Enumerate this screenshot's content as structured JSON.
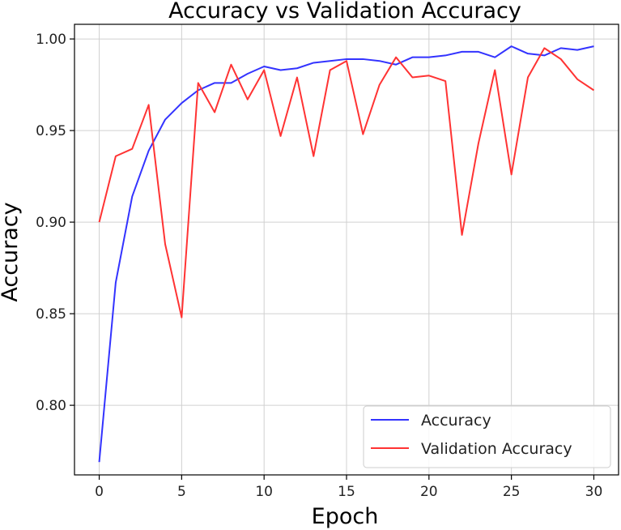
{
  "chart_data": {
    "type": "line",
    "title": "Accuracy vs Validation Accuracy",
    "xlabel": "Epoch",
    "ylabel": "Accuracy",
    "xlim": [
      -1.5,
      31.5
    ],
    "ylim": [
      0.762,
      1.008
    ],
    "grid": true,
    "legend_position": "lower-right",
    "x_ticks": [
      0,
      5,
      10,
      15,
      20,
      25,
      30
    ],
    "x_tick_labels": [
      "0",
      "5",
      "10",
      "15",
      "20",
      "25",
      "30"
    ],
    "y_ticks": [
      0.8,
      0.85,
      0.9,
      0.95,
      1.0
    ],
    "y_tick_labels": [
      "0.80",
      "0.85",
      "0.90",
      "0.95",
      "1.00"
    ],
    "x": [
      0,
      1,
      2,
      3,
      4,
      5,
      6,
      7,
      8,
      9,
      10,
      11,
      12,
      13,
      14,
      15,
      16,
      17,
      18,
      19,
      20,
      21,
      22,
      23,
      24,
      25,
      26,
      27,
      28,
      29,
      30
    ],
    "series": [
      {
        "name": "Accuracy",
        "color": "#3333ff",
        "values": [
          0.769,
          0.867,
          0.914,
          0.939,
          0.956,
          0.965,
          0.972,
          0.976,
          0.976,
          0.981,
          0.985,
          0.983,
          0.984,
          0.987,
          0.988,
          0.989,
          0.989,
          0.988,
          0.986,
          0.99,
          0.99,
          0.991,
          0.993,
          0.993,
          0.99,
          0.996,
          0.992,
          0.991,
          0.995,
          0.994,
          0.996
        ]
      },
      {
        "name": "Validation Accuracy",
        "color": "#ff3333",
        "values": [
          0.9,
          0.936,
          0.94,
          0.964,
          0.888,
          0.848,
          0.976,
          0.96,
          0.986,
          0.967,
          0.983,
          0.947,
          0.979,
          0.936,
          0.983,
          0.988,
          0.948,
          0.975,
          0.99,
          0.979,
          0.98,
          0.977,
          0.893,
          0.943,
          0.983,
          0.926,
          0.979,
          0.995,
          0.989,
          0.978,
          0.972
        ]
      }
    ]
  }
}
